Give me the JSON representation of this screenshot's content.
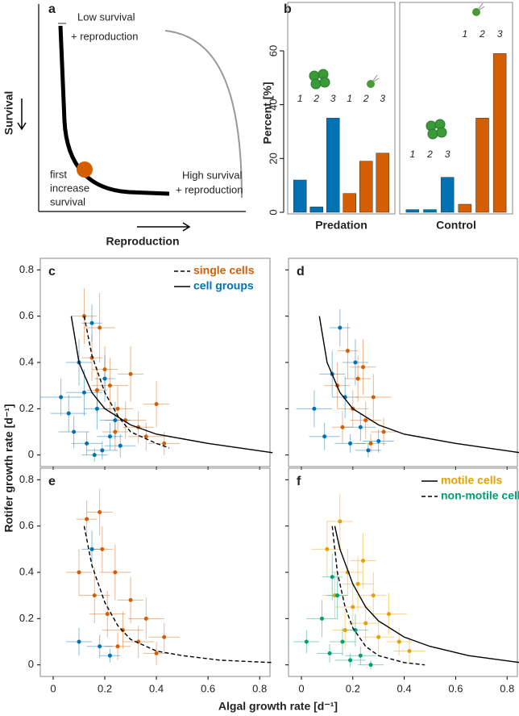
{
  "diagram": {
    "label": "a",
    "top_text": [
      "Low survival",
      "+ reproduction"
    ],
    "point_text": [
      "first",
      "increase",
      "survival"
    ],
    "right_text": [
      "High survival",
      "+ reproduction"
    ],
    "ylabel": "Survival",
    "xlabel": "Reproduction"
  },
  "xlabel": "Algal growth rate [d⁻¹]",
  "ylabel": "Rotifer growth rate [d⁻¹]",
  "chart_data": [
    {
      "type": "bar",
      "title": "b",
      "ylabel": "Percent [%]",
      "ylim": [
        0,
        78
      ],
      "yticks": [
        0,
        20,
        40,
        60
      ],
      "facets": [
        {
          "label": "Predation",
          "categories": [
            "1",
            "2",
            "3",
            "1",
            "2",
            "3"
          ],
          "values": [
            12,
            2,
            35,
            7,
            19,
            22
          ],
          "colors": [
            "#0072b2",
            "#0072b2",
            "#0072b2",
            "#d55e00",
            "#d55e00",
            "#d55e00"
          ]
        },
        {
          "label": "Control",
          "categories": [
            "1",
            "2",
            "3",
            "1",
            "2",
            "3"
          ],
          "values": [
            1,
            1,
            13,
            3,
            35,
            59
          ],
          "colors": [
            "#0072b2",
            "#0072b2",
            "#0072b2",
            "#d55e00",
            "#d55e00",
            "#d55e00"
          ]
        }
      ]
    },
    {
      "type": "scatter",
      "title": "c",
      "xlim": [
        -0.05,
        0.84
      ],
      "ylim": [
        -0.05,
        0.85
      ],
      "xticks": [
        0,
        0.2,
        0.4,
        0.6,
        0.8
      ],
      "yticks": [
        0,
        0.2,
        0.4,
        0.6,
        0.8
      ],
      "series": [
        {
          "name": "single cells",
          "color": "#d55e00",
          "dashed": true,
          "x": [
            0.12,
            0.15,
            0.18,
            0.2,
            0.22,
            0.25,
            0.28,
            0.3,
            0.33,
            0.36,
            0.4,
            0.43,
            0.17,
            0.24
          ],
          "y": [
            0.6,
            0.42,
            0.55,
            0.37,
            0.3,
            0.2,
            0.15,
            0.35,
            0.12,
            0.08,
            0.22,
            0.05,
            0.28,
            0.1
          ],
          "xerr": [
            0.05,
            0.04,
            0.06,
            0.05,
            0.07,
            0.06,
            0.08,
            0.05,
            0.06,
            0.07,
            0.05,
            0.06,
            0.04,
            0.05
          ],
          "yerr": [
            0.12,
            0.1,
            0.15,
            0.1,
            0.12,
            0.1,
            0.08,
            0.12,
            0.07,
            0.06,
            0.1,
            0.05,
            0.1,
            0.08
          ],
          "fit": {
            "x": [
              0.12,
              0.15,
              0.2,
              0.25,
              0.3,
              0.4,
              0.45
            ],
            "y": [
              0.6,
              0.43,
              0.27,
              0.17,
              0.1,
              0.05,
              0.03
            ]
          }
        },
        {
          "name": "cell groups",
          "color": "#0072b2",
          "dashed": false,
          "x": [
            0.03,
            0.08,
            0.1,
            0.13,
            0.15,
            0.17,
            0.19,
            0.2,
            0.22,
            0.24,
            0.12,
            0.16,
            0.26,
            0.06
          ],
          "y": [
            0.25,
            0.1,
            0.4,
            0.05,
            0.57,
            0.2,
            0.02,
            0.33,
            0.08,
            0.15,
            0.27,
            0.0,
            0.04,
            0.18
          ],
          "xerr": [
            0.08,
            0.06,
            0.05,
            0.06,
            0.04,
            0.05,
            0.06,
            0.04,
            0.05,
            0.06,
            0.07,
            0.05,
            0.06,
            0.07
          ],
          "yerr": [
            0.08,
            0.07,
            0.1,
            0.05,
            0.08,
            0.09,
            0.04,
            0.1,
            0.06,
            0.08,
            0.1,
            0.03,
            0.05,
            0.08
          ],
          "fit": {
            "x": [
              0.07,
              0.1,
              0.15,
              0.2,
              0.3,
              0.4,
              0.6,
              0.85
            ],
            "y": [
              0.6,
              0.4,
              0.27,
              0.2,
              0.13,
              0.09,
              0.05,
              0.01
            ]
          }
        }
      ]
    },
    {
      "type": "scatter",
      "title": "d",
      "xlim": [
        -0.05,
        0.84
      ],
      "ylim": [
        -0.05,
        0.85
      ],
      "xticks": [
        0,
        0.2,
        0.4,
        0.6,
        0.8
      ],
      "yticks": [
        0,
        0.2,
        0.4,
        0.6,
        0.8
      ],
      "series": [
        {
          "color": "#0072b2",
          "dashed": false,
          "x": [
            0.05,
            0.09,
            0.12,
            0.15,
            0.17,
            0.19,
            0.21,
            0.23,
            0.26,
            0.3
          ],
          "y": [
            0.2,
            0.08,
            0.35,
            0.55,
            0.25,
            0.05,
            0.4,
            0.12,
            0.02,
            0.06
          ],
          "xerr": [
            0.07,
            0.06,
            0.05,
            0.04,
            0.05,
            0.06,
            0.05,
            0.06,
            0.05,
            0.06
          ],
          "yerr": [
            0.08,
            0.06,
            0.1,
            0.08,
            0.09,
            0.04,
            0.1,
            0.06,
            0.03,
            0.05
          ],
          "fit": {
            "x": [
              0.07,
              0.1,
              0.15,
              0.2,
              0.3,
              0.4,
              0.6,
              0.85
            ],
            "y": [
              0.6,
              0.4,
              0.27,
              0.2,
              0.13,
              0.09,
              0.05,
              0.01
            ]
          }
        },
        {
          "color": "#d55e00",
          "x": [
            0.14,
            0.18,
            0.2,
            0.22,
            0.25,
            0.28,
            0.32,
            0.16,
            0.24,
            0.27
          ],
          "y": [
            0.3,
            0.45,
            0.2,
            0.33,
            0.15,
            0.25,
            0.1,
            0.12,
            0.38,
            0.05
          ],
          "xerr": [
            0.05,
            0.04,
            0.06,
            0.05,
            0.06,
            0.07,
            0.05,
            0.04,
            0.05,
            0.06
          ],
          "yerr": [
            0.1,
            0.12,
            0.08,
            0.1,
            0.08,
            0.1,
            0.06,
            0.07,
            0.12,
            0.04
          ]
        }
      ]
    },
    {
      "type": "scatter",
      "title": "e",
      "xlim": [
        -0.05,
        0.84
      ],
      "ylim": [
        -0.05,
        0.85
      ],
      "xticks": [
        0,
        0.2,
        0.4,
        0.6,
        0.8
      ],
      "yticks": [
        0,
        0.2,
        0.4,
        0.6,
        0.8
      ],
      "series": [
        {
          "color": "#d55e00",
          "dashed": true,
          "x": [
            0.1,
            0.13,
            0.16,
            0.18,
            0.21,
            0.24,
            0.27,
            0.3,
            0.33,
            0.36,
            0.4,
            0.43,
            0.19,
            0.25
          ],
          "y": [
            0.4,
            0.63,
            0.3,
            0.66,
            0.22,
            0.4,
            0.15,
            0.28,
            0.1,
            0.2,
            0.05,
            0.12,
            0.5,
            0.08
          ],
          "xerr": [
            0.05,
            0.04,
            0.06,
            0.05,
            0.07,
            0.06,
            0.08,
            0.05,
            0.06,
            0.07,
            0.05,
            0.06,
            0.04,
            0.05
          ],
          "yerr": [
            0.1,
            0.08,
            0.12,
            0.1,
            0.1,
            0.12,
            0.08,
            0.1,
            0.07,
            0.09,
            0.05,
            0.06,
            0.1,
            0.06
          ],
          "fit": {
            "x": [
              0.12,
              0.15,
              0.2,
              0.25,
              0.3,
              0.4,
              0.5,
              0.65,
              0.85
            ],
            "y": [
              0.6,
              0.43,
              0.27,
              0.17,
              0.11,
              0.06,
              0.04,
              0.02,
              0.01
            ]
          }
        },
        {
          "color": "#0072b2",
          "x": [
            0.1,
            0.15,
            0.18,
            0.22
          ],
          "y": [
            0.1,
            0.5,
            0.08,
            0.04
          ],
          "xerr": [
            0.05,
            0.04,
            0.05,
            0.04
          ],
          "yerr": [
            0.06,
            0.08,
            0.05,
            0.03
          ]
        }
      ]
    },
    {
      "type": "scatter",
      "title": "f",
      "xlim": [
        -0.05,
        0.84
      ],
      "ylim": [
        -0.05,
        0.85
      ],
      "xticks": [
        0,
        0.2,
        0.4,
        0.6,
        0.8
      ],
      "yticks": [
        0,
        0.2,
        0.4,
        0.6,
        0.8
      ],
      "series": [
        {
          "name": "motile cells",
          "color": "#e6a100",
          "dashed": false,
          "x": [
            0.1,
            0.13,
            0.15,
            0.18,
            0.2,
            0.22,
            0.25,
            0.28,
            0.3,
            0.34,
            0.38,
            0.42,
            0.17,
            0.24
          ],
          "y": [
            0.5,
            0.3,
            0.62,
            0.4,
            0.25,
            0.35,
            0.18,
            0.3,
            0.12,
            0.22,
            0.1,
            0.06,
            0.15,
            0.45
          ],
          "xerr": [
            0.06,
            0.05,
            0.05,
            0.06,
            0.07,
            0.06,
            0.07,
            0.05,
            0.06,
            0.07,
            0.05,
            0.06,
            0.05,
            0.05
          ],
          "yerr": [
            0.12,
            0.1,
            0.12,
            0.1,
            0.1,
            0.12,
            0.08,
            0.1,
            0.07,
            0.09,
            0.06,
            0.05,
            0.08,
            0.12
          ],
          "fit": {
            "x": [
              0.13,
              0.15,
              0.2,
              0.25,
              0.3,
              0.4,
              0.5,
              0.65,
              0.85
            ],
            "y": [
              0.6,
              0.5,
              0.35,
              0.25,
              0.19,
              0.12,
              0.08,
              0.04,
              0.01
            ]
          }
        },
        {
          "name": "non-motile cells",
          "color": "#009e73",
          "dashed": true,
          "x": [
            0.02,
            0.08,
            0.11,
            0.14,
            0.16,
            0.19,
            0.21,
            0.23,
            0.27,
            0.12
          ],
          "y": [
            0.1,
            0.2,
            0.05,
            0.3,
            0.1,
            0.02,
            0.15,
            0.04,
            0.0,
            0.38
          ],
          "xerr": [
            0.05,
            0.06,
            0.05,
            0.04,
            0.05,
            0.06,
            0.05,
            0.06,
            0.05,
            0.04
          ],
          "yerr": [
            0.05,
            0.08,
            0.04,
            0.1,
            0.06,
            0.03,
            0.07,
            0.04,
            0.02,
            0.1
          ],
          "fit": {
            "x": [
              0.12,
              0.14,
              0.17,
              0.2,
              0.25,
              0.3,
              0.4,
              0.48
            ],
            "y": [
              0.6,
              0.4,
              0.25,
              0.16,
              0.08,
              0.04,
              0.01,
              0.0
            ]
          }
        }
      ]
    }
  ]
}
